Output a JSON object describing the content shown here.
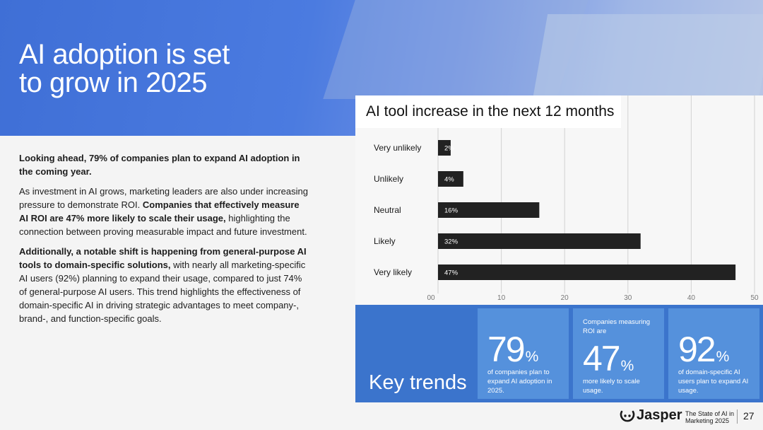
{
  "headline": {
    "line1": "AI adoption is set",
    "line2": "to grow in 2025"
  },
  "body": {
    "p1": "Looking ahead, 79% of companies plan to expand AI adoption in the coming year.",
    "p2_a": "As investment in AI grows, marketing leaders are also under increasing pressure to demonstrate ROI. ",
    "p2_b": "Companies that effectively measure AI ROI are 47% more likely to scale their usage,",
    "p2_c": " highlighting the connection between proving measurable impact and future investment.",
    "p3_a": "Additionally, a notable shift is happening from general-purpose AI tools to domain-specific solutions,",
    "p3_b": " with nearly all marketing-specific AI users (92%) planning to expand their usage, compared to just 74% of general-purpose AI users. This trend highlights the effectiveness of domain-specific AI in driving strategic advantages to meet company-, brand-, and function-specific goals."
  },
  "chart_data": {
    "type": "bar",
    "orientation": "horizontal",
    "title": "AI tool increase in the next 12 months",
    "categories": [
      "Very unlikely",
      "Unlikely",
      "Neutral",
      "Likely",
      "Very likely"
    ],
    "values": [
      2,
      4,
      16,
      32,
      47
    ],
    "value_labels": [
      "2%",
      "4%",
      "16%",
      "32%",
      "47%"
    ],
    "xticks": [
      "00",
      "10",
      "20",
      "30",
      "40",
      "50"
    ],
    "xlim": [
      0,
      50
    ],
    "bar_color": "#222222",
    "grid": true
  },
  "key_trends": {
    "label": "Key trends",
    "cards": [
      {
        "top": "",
        "value": "79",
        "unit": "%",
        "desc": "of companies plan to expand AI adoption in 2025."
      },
      {
        "top": "Companies measuring ROI are",
        "value": "47",
        "unit": "%",
        "desc": "more likely to scale usage."
      },
      {
        "top": "",
        "value": "92",
        "unit": "%",
        "desc": "of domain-specific AI users plan to expand AI usage."
      }
    ]
  },
  "footer": {
    "brand": "Jasper",
    "publication_line1": "The State of AI in",
    "publication_line2": "Marketing 2025",
    "page": "27"
  }
}
